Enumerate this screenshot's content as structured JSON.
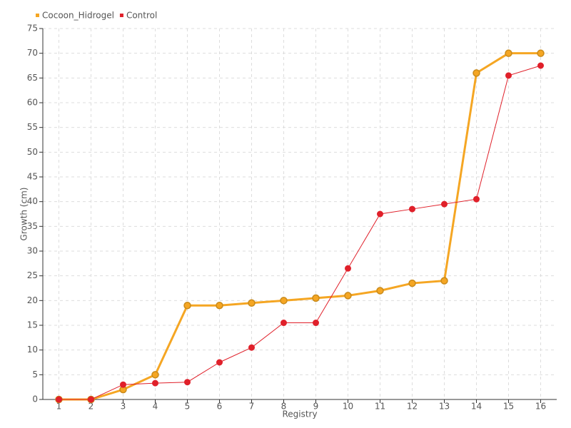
{
  "chart_data": {
    "type": "line",
    "x_label": "Registry",
    "y_label": "Growth (cm)",
    "categories": [
      "1",
      "2",
      "3",
      "4",
      "5",
      "6",
      "7",
      "8",
      "9",
      "10",
      "11",
      "12",
      "13",
      "14",
      "15",
      "16"
    ],
    "series": [
      {
        "name": "Cocoon_Hidrogel",
        "color": "#f5a623",
        "values": [
          0,
          0,
          2,
          5,
          19,
          19,
          19.5,
          20,
          20.5,
          21,
          22,
          23.5,
          24,
          66,
          70,
          70
        ]
      },
      {
        "name": "Control",
        "color": "#e0202a",
        "values": [
          0,
          0,
          3,
          3.3,
          3.5,
          7.5,
          10.5,
          15.5,
          15.5,
          26.5,
          37.5,
          38.5,
          39.5,
          40.5,
          65.5,
          67.5
        ]
      }
    ],
    "ylim": [
      0,
      75
    ],
    "yticks": [
      0,
      5,
      10,
      15,
      20,
      25,
      30,
      35,
      40,
      45,
      50,
      55,
      60,
      65,
      70,
      75
    ],
    "grid": true,
    "legend": "top-left"
  }
}
